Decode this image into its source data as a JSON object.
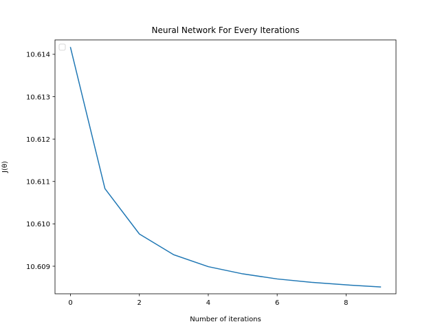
{
  "chart_data": {
    "type": "line",
    "title": "Neural Network For Every Iterations",
    "xlabel": "Number of iterations",
    "ylabel": "J(θ)",
    "x": [
      0,
      1,
      2,
      3,
      4,
      5,
      6,
      7,
      8,
      9
    ],
    "series": [
      {
        "values": [
          10.61416,
          10.61083,
          10.60976,
          10.60927,
          10.60899,
          10.60882,
          10.6087,
          10.60862,
          10.60856,
          10.60851
        ],
        "color": "#1f77b4"
      }
    ],
    "xlim": [
      -0.45,
      9.45
    ],
    "ylim": [
      10.60835,
      10.61434
    ],
    "xticks": [
      0,
      2,
      4,
      6,
      8
    ],
    "xtick_labels": [
      "0",
      "2",
      "4",
      "6",
      "8"
    ],
    "yticks": [
      10.609,
      10.61,
      10.611,
      10.612,
      10.613,
      10.614
    ],
    "ytick_labels": [
      "10.609",
      "10.610",
      "10.611",
      "10.612",
      "10.613",
      "10.614"
    ],
    "grid": false,
    "legend": {
      "placement": "upper left",
      "entries": []
    }
  }
}
